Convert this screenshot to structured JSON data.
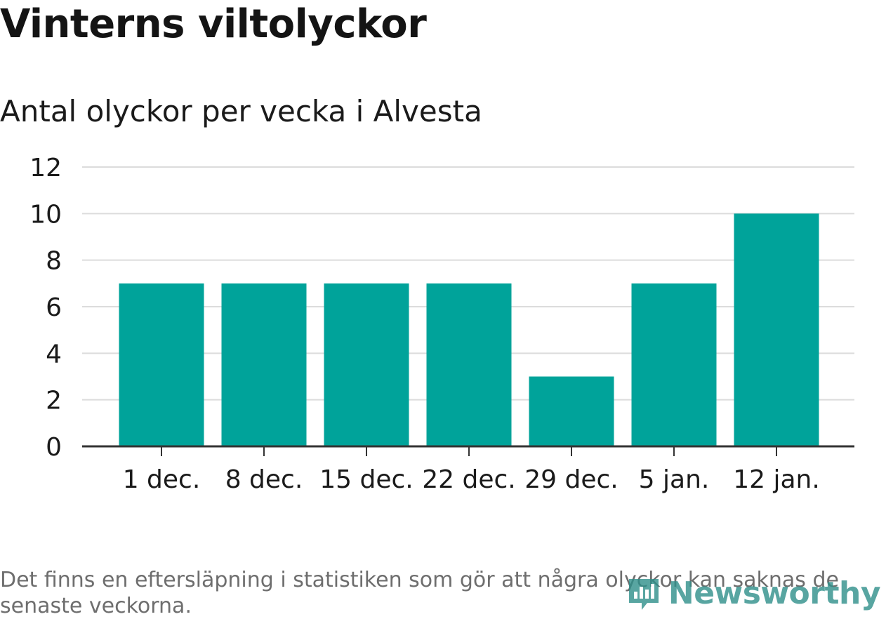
{
  "title": "Vinterns viltolyckor",
  "subtitle": "Antal olyckor per vecka i Alvesta",
  "footnote": "Det finns en eftersläpning i statistiken som gör att några olyckor kan saknas de senaste veckorna.",
  "brand": {
    "name": "Newsworthy",
    "icon": "newsworthy-logo-icon",
    "color": "#2f8f8a"
  },
  "colors": {
    "bar": "#00a39a",
    "grid": "#dcdcdc",
    "axis": "#333333",
    "text": "#1a1a1a"
  },
  "chart_data": {
    "type": "bar",
    "categories": [
      "1 dec.",
      "8 dec.",
      "15 dec.",
      "22 dec.",
      "29 dec.",
      "5 jan.",
      "12 jan."
    ],
    "values": [
      7,
      7,
      7,
      7,
      3,
      7,
      10
    ],
    "title": "Vinterns viltolyckor",
    "subtitle": "Antal olyckor per vecka i Alvesta",
    "ylim": [
      0,
      12
    ],
    "yticks": [
      0,
      2,
      4,
      6,
      8,
      10,
      12
    ],
    "grid": true
  }
}
